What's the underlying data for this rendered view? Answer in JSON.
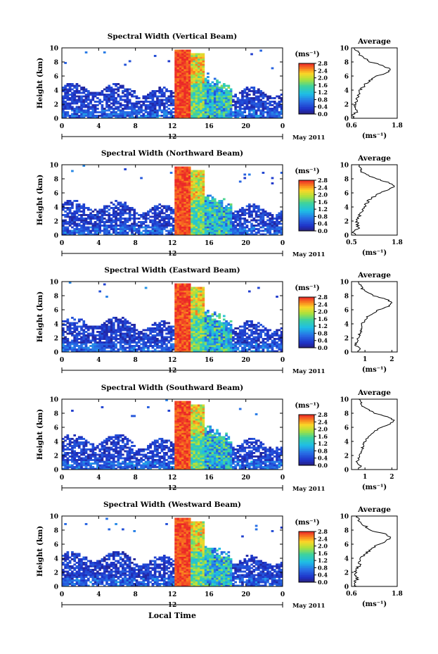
{
  "figure": {
    "date_label": "May 2011",
    "xlabel": "Local Time",
    "xticks": [
      "0",
      "4",
      "8",
      "12",
      "16",
      "20",
      "0"
    ],
    "xcenter_tick": "12",
    "ylabel": "Height (km)",
    "yticks": [
      "0",
      "2",
      "4",
      "6",
      "8",
      "10"
    ],
    "colorbar_unit": "(ms⁻¹)",
    "colorbar_ticks": [
      "0.0",
      "0.4",
      "0.8",
      "1.2",
      "1.6",
      "2.0",
      "2.4",
      "2.8"
    ],
    "avg_title": "Average",
    "avg_unit": "(ms⁻¹)"
  },
  "chart_data": [
    {
      "type": "heatmap",
      "title": "Spectral Width (Vertical Beam)",
      "xlim": [
        0,
        24
      ],
      "ylim": [
        0,
        10
      ],
      "clim": [
        0.0,
        2.8
      ],
      "avg_profile": {
        "xlim": [
          0.6,
          1.8
        ],
        "xticks": [
          "0.6",
          "1.8"
        ],
        "height_km": [
          0,
          0.5,
          1,
          2,
          3,
          4,
          5,
          6,
          6.5,
          7,
          7.5,
          8,
          9,
          10
        ],
        "value": [
          0.7,
          0.62,
          0.75,
          0.68,
          0.78,
          0.82,
          1.0,
          1.25,
          1.55,
          1.6,
          1.4,
          1.1,
          0.8,
          0.7
        ]
      }
    },
    {
      "type": "heatmap",
      "title": "Spectral Width (Northward Beam)",
      "xlim": [
        0,
        24
      ],
      "ylim": [
        0,
        10
      ],
      "clim": [
        0.0,
        2.8
      ],
      "avg_profile": {
        "xlim": [
          0.5,
          1.8
        ],
        "xticks": [
          "0.5",
          "1.8"
        ],
        "height_km": [
          0,
          0.5,
          1,
          2,
          3,
          4,
          5,
          6,
          6.5,
          7,
          7.5,
          8,
          9,
          10
        ],
        "value": [
          0.6,
          0.55,
          0.7,
          0.65,
          0.75,
          0.85,
          1.0,
          1.3,
          1.6,
          1.7,
          1.55,
          1.2,
          0.8,
          0.7
        ]
      }
    },
    {
      "type": "heatmap",
      "title": "Spectral Width (Eastward Beam)",
      "xlim": [
        0,
        24
      ],
      "ylim": [
        0,
        10
      ],
      "clim": [
        0.0,
        2.8
      ],
      "avg_profile": {
        "xlim": [
          0.5,
          2.2
        ],
        "xticks": [
          "1",
          "2"
        ],
        "height_km": [
          0,
          0.5,
          1,
          2,
          3,
          4,
          5,
          6,
          6.5,
          7,
          7.5,
          8,
          9,
          10
        ],
        "value": [
          0.7,
          0.8,
          0.65,
          0.75,
          0.85,
          0.9,
          1.1,
          1.5,
          1.9,
          2.0,
          1.8,
          1.3,
          0.9,
          0.75
        ]
      }
    },
    {
      "type": "heatmap",
      "title": "Spectral Width (Southward Beam)",
      "xlim": [
        0,
        24
      ],
      "ylim": [
        0,
        10
      ],
      "clim": [
        0.0,
        2.8
      ],
      "avg_profile": {
        "xlim": [
          0.5,
          2.2
        ],
        "xticks": [
          "1",
          "2"
        ],
        "height_km": [
          0,
          0.5,
          1,
          2,
          3,
          4,
          5,
          6,
          6.5,
          7,
          7.5,
          8,
          9,
          10
        ],
        "value": [
          0.75,
          0.85,
          0.7,
          0.8,
          0.9,
          1.0,
          1.2,
          1.6,
          1.95,
          2.05,
          1.85,
          1.35,
          0.9,
          0.8
        ]
      }
    },
    {
      "type": "heatmap",
      "title": "Spectral Width (Westward Beam)",
      "xlim": [
        0,
        24
      ],
      "ylim": [
        0,
        10
      ],
      "clim": [
        0.0,
        2.8
      ],
      "avg_profile": {
        "xlim": [
          0.6,
          1.8
        ],
        "xticks": [
          "0.6",
          "1.8"
        ],
        "height_km": [
          0,
          0.5,
          1,
          2,
          3,
          4,
          5,
          6,
          6.5,
          7,
          7.5,
          8,
          9,
          10
        ],
        "value": [
          0.72,
          0.65,
          0.75,
          0.7,
          0.8,
          0.85,
          1.05,
          1.3,
          1.55,
          1.6,
          1.45,
          1.1,
          0.85,
          0.75
        ]
      }
    }
  ]
}
